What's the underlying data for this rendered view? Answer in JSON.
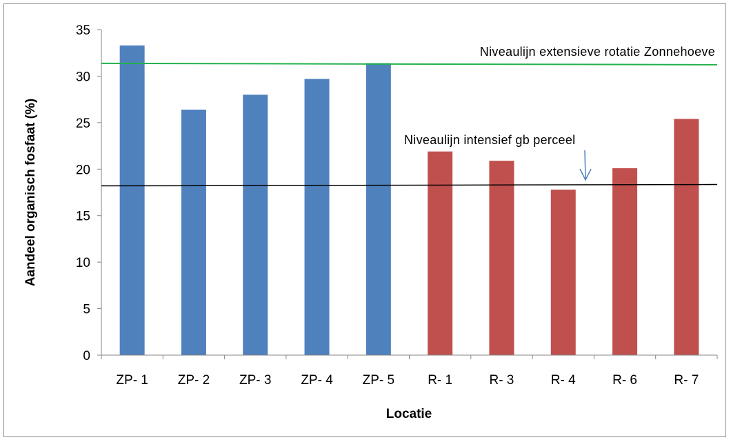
{
  "chart_data": {
    "type": "bar",
    "categories": [
      "ZP- 1",
      "ZP- 2",
      "ZP- 3",
      "ZP- 4",
      "ZP- 5",
      "R- 1",
      "R- 3",
      "R- 4",
      "R- 6",
      "R- 7"
    ],
    "values": [
      33.3,
      26.4,
      28.0,
      29.7,
      31.4,
      21.9,
      20.9,
      17.8,
      20.1,
      25.4
    ],
    "bar_colors": [
      "#4f81bd",
      "#4f81bd",
      "#4f81bd",
      "#4f81bd",
      "#4f81bd",
      "#c0504d",
      "#c0504d",
      "#c0504d",
      "#c0504d",
      "#c0504d"
    ],
    "xlabel": "Locatie",
    "ylabel": "Aandeel organisch fosfaat (%)",
    "ylim": [
      0,
      35
    ],
    "yticks": [
      0,
      5,
      10,
      15,
      20,
      25,
      30,
      35
    ],
    "grid": false,
    "reference_lines": [
      {
        "value": 31.3,
        "color": "#22b14c",
        "label": "Niveaulijn extensieve rotatie Zonnehoeve"
      },
      {
        "value": 18.2,
        "color": "#000000",
        "label": "Niveaulijn intensief gb perceel"
      }
    ]
  }
}
